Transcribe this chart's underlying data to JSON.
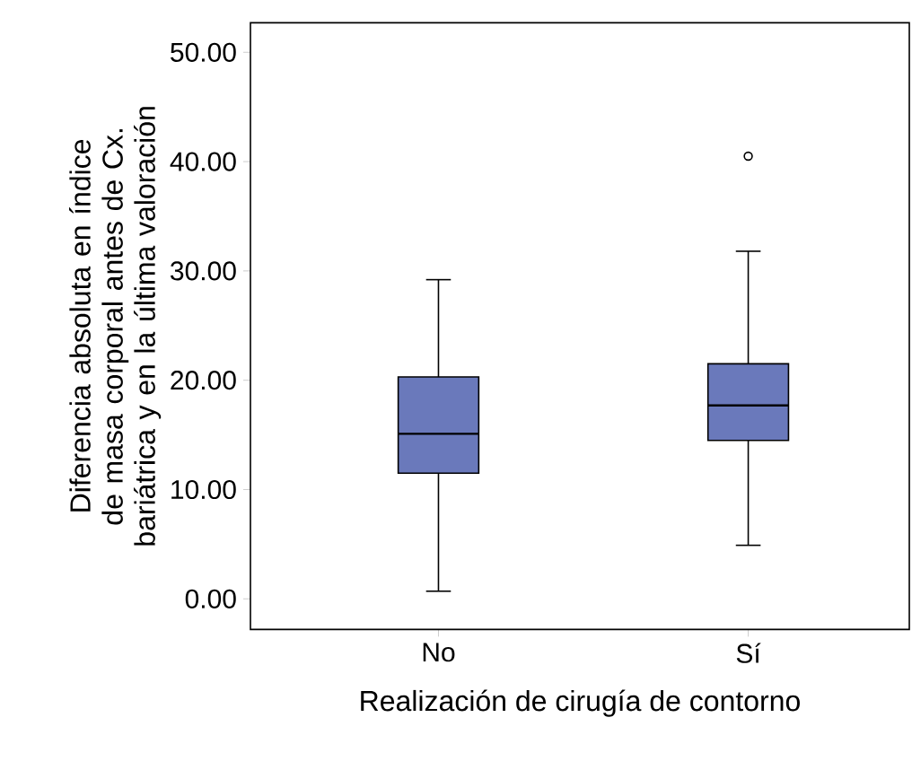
{
  "chart_data": {
    "type": "box",
    "xlabel": "Realización de cirugía de contorno",
    "ylabel": "Diferencia absoluta en índice de masa corporal antes de Cx. bariátrica y en la última valoración",
    "categories": [
      "No",
      "Sí"
    ],
    "color": "#6a79bb",
    "boxes": [
      {
        "low": 0.7,
        "q1": 11.5,
        "median": 15.1,
        "q3": 20.3,
        "high": 29.2
      },
      {
        "low": 4.9,
        "q1": 14.5,
        "median": 17.7,
        "q3": 21.5,
        "high": 31.8,
        "outliers": [
          40.5
        ]
      }
    ],
    "ylim": [
      -2.8,
      52.7
    ],
    "yticks": [
      {
        "value": 0,
        "label": "0.00"
      },
      {
        "value": 10,
        "label": "10.00"
      },
      {
        "value": 20,
        "label": "20.00"
      },
      {
        "value": 30,
        "label": "30.00"
      },
      {
        "value": 40,
        "label": "40.00"
      },
      {
        "value": 50,
        "label": "50.00"
      }
    ]
  }
}
